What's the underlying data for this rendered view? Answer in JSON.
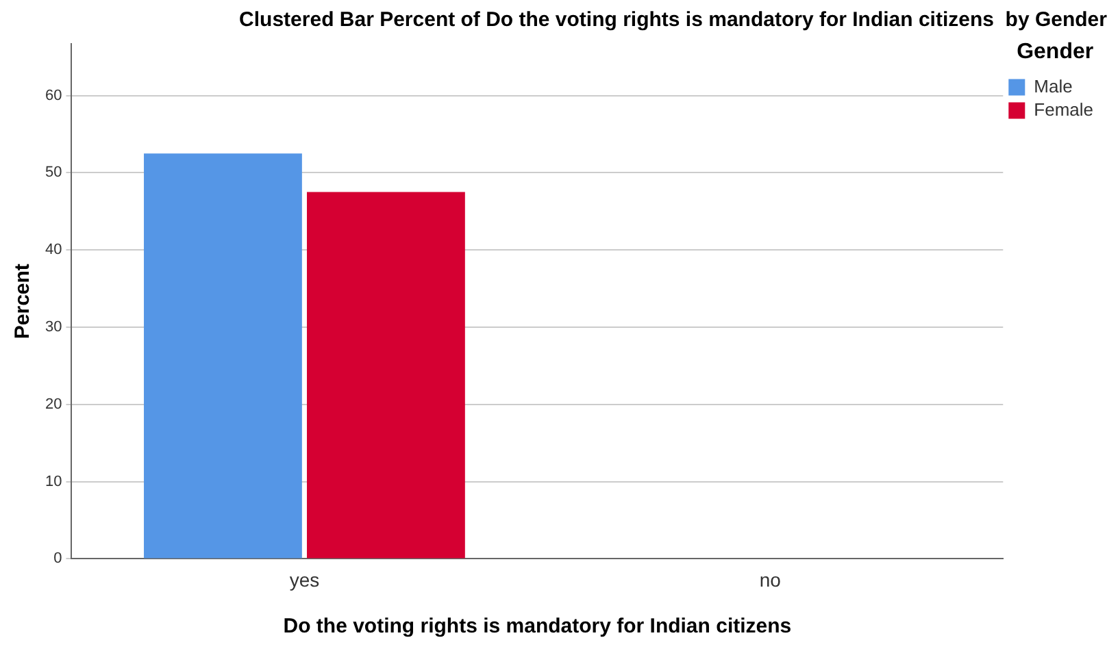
{
  "chart_data": {
    "type": "bar",
    "title": "Clustered Bar Percent of Do the voting rights is mandatory for Indian citizens  by Gender",
    "xlabel": "Do the voting rights is mandatory for Indian citizens",
    "ylabel": "Percent",
    "legend_title": "Gender",
    "categories": [
      "yes",
      "no"
    ],
    "series": [
      {
        "name": "Male",
        "color": "#5596e6",
        "values": [
          52.5,
          0
        ]
      },
      {
        "name": "Female",
        "color": "#d50032",
        "values": [
          47.5,
          0
        ]
      }
    ],
    "ylim": [
      0,
      66.7
    ],
    "yticks": [
      0,
      10,
      20,
      30,
      40,
      50,
      60
    ],
    "grid": "y",
    "legend": "top right"
  }
}
